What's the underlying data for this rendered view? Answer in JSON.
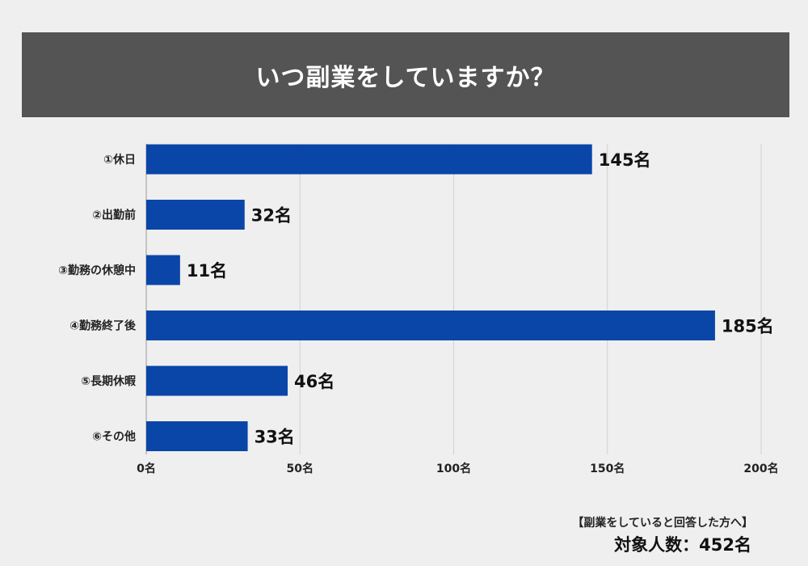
{
  "colors": {
    "bar": "#0a46a8",
    "banner": "#545454",
    "background": "#efefef",
    "grid": "#d2d2d2"
  },
  "chart_data": {
    "type": "bar",
    "orientation": "horizontal",
    "title": "いつ副業をしていますか？",
    "categories": [
      "①休日",
      "②出勤前",
      "③勤務の休憩中",
      "④勤務終了後",
      "⑤長期休暇",
      "⑥その他"
    ],
    "values": [
      145,
      32,
      11,
      185,
      46,
      33
    ],
    "value_suffix": "名",
    "xlim": [
      0,
      200
    ],
    "xticks": [
      0,
      50,
      100,
      150,
      200
    ],
    "xtick_labels": [
      "0名",
      "50名",
      "100名",
      "150名",
      "200名"
    ],
    "grid": true
  },
  "footer": {
    "note": "【副業をしていると回答した方へ】",
    "total": "対象人数：452名"
  }
}
